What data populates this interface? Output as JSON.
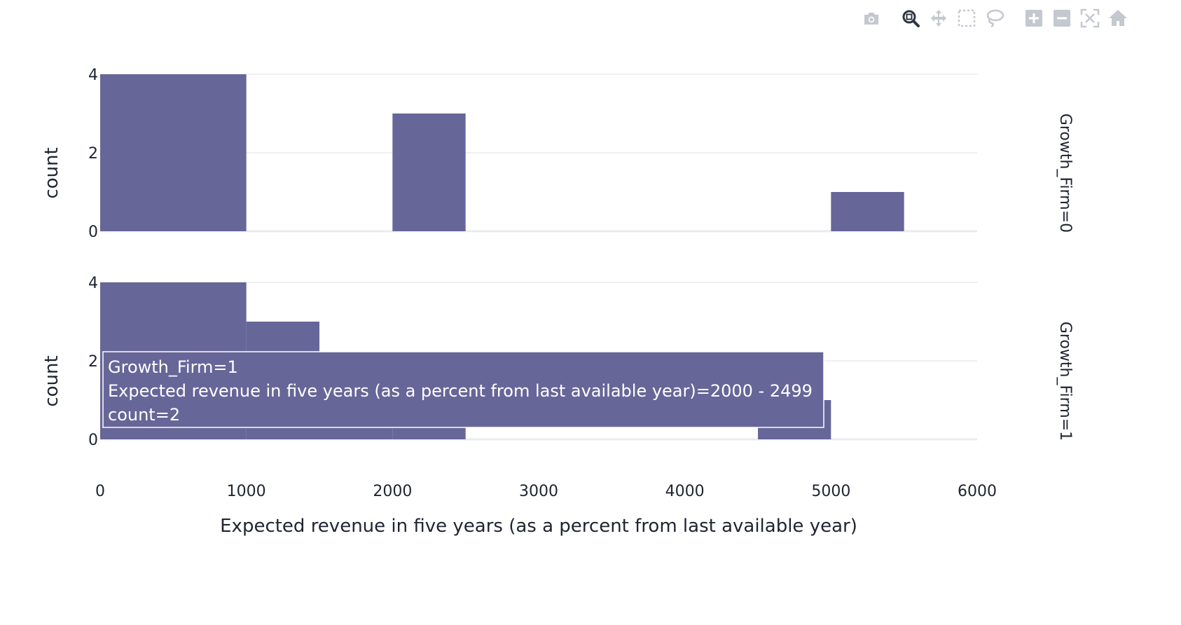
{
  "modebar": {
    "buttons": [
      {
        "name": "camera-icon",
        "title": "Download plot as a png"
      },
      {
        "name": "zoom-icon",
        "title": "Zoom",
        "active": true
      },
      {
        "name": "pan-icon",
        "title": "Pan"
      },
      {
        "name": "box-select-icon",
        "title": "Box Select"
      },
      {
        "name": "lasso-select-icon",
        "title": "Lasso Select"
      },
      {
        "name": "zoom-in-icon",
        "title": "Zoom in"
      },
      {
        "name": "zoom-out-icon",
        "title": "Zoom out"
      },
      {
        "name": "autoscale-icon",
        "title": "Autoscale"
      },
      {
        "name": "reset-axes-icon",
        "title": "Reset axes"
      }
    ],
    "icon_color": "#c4c8cf",
    "active_color": "#2f3442"
  },
  "chart_data": {
    "type": "bar",
    "subtype": "histogram",
    "bar_color": "#676698",
    "grid_color": "#e8ebf0",
    "xlabel": "Expected revenue in five years (as a percent from last available year)",
    "ylabel": "count",
    "xlim": [
      0,
      6000
    ],
    "x_ticks": [
      "0",
      "1000",
      "2000",
      "3000",
      "4000",
      "5000",
      "6000"
    ],
    "y_ticks": [
      "0",
      "2",
      "4"
    ],
    "ylim": [
      0,
      4.2
    ],
    "facets": [
      {
        "label": "Growth_Firm=0",
        "bins": [
          {
            "x0": 0,
            "x1": 1000,
            "count": 4
          },
          {
            "x0": 2000,
            "x1": 2500,
            "count": 3
          },
          {
            "x0": 5000,
            "x1": 5500,
            "count": 1
          }
        ]
      },
      {
        "label": "Growth_Firm=1",
        "bins": [
          {
            "x0": 0,
            "x1": 1000,
            "count": 4
          },
          {
            "x0": 1000,
            "x1": 1500,
            "count": 3
          },
          {
            "x0": 1500,
            "x1": 2000,
            "count": 1
          },
          {
            "x0": 2000,
            "x1": 2500,
            "count": 2
          },
          {
            "x0": 4500,
            "x1": 5000,
            "count": 1
          }
        ]
      }
    ],
    "hover": {
      "lines": [
        "Growth_Firm=1",
        "Expected revenue in five years (as a percent from last available year)=2000 - 2499",
        "count=2"
      ]
    }
  }
}
